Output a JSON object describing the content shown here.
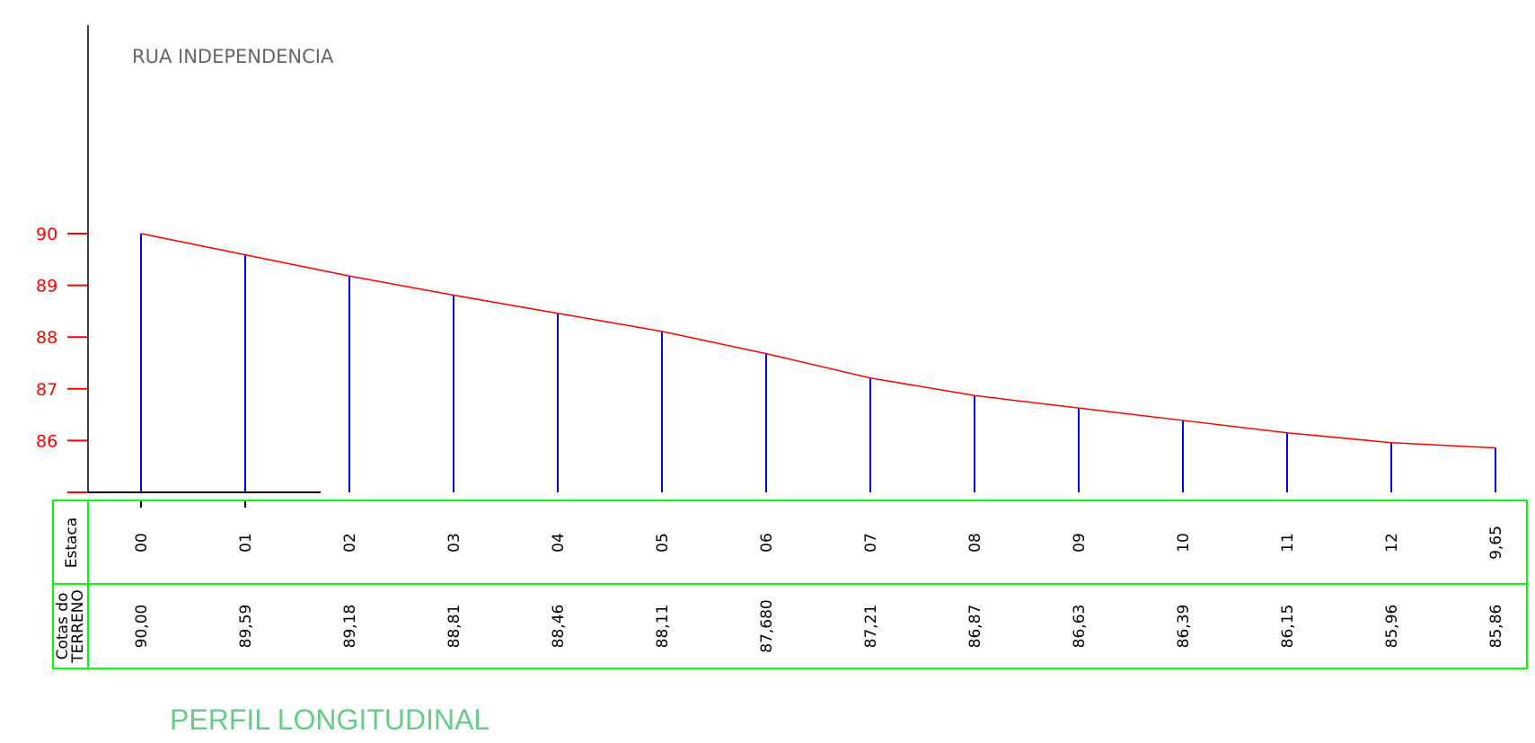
{
  "chart_data": {
    "type": "line",
    "title": "RUA INDEPENDENCIA",
    "subtitle": "PERFIL LONGITUDINAL",
    "x": [
      "00",
      "01",
      "02",
      "03",
      "04",
      "05",
      "06",
      "07",
      "08",
      "09",
      "10",
      "11",
      "12",
      "9,65"
    ],
    "series": [
      {
        "values": [
          90.0,
          89.59,
          89.18,
          88.81,
          88.46,
          88.11,
          87.68,
          87.21,
          86.87,
          86.63,
          86.39,
          86.15,
          85.96,
          85.86
        ]
      }
    ],
    "ylim": [
      85,
      90
    ],
    "y_ticks": [
      "86",
      "87",
      "88",
      "89",
      "90"
    ],
    "table": {
      "row_labels": {
        "estaca": "Estaca",
        "cotas_line1": "Cotas do",
        "cotas_line2": "TERRENO"
      },
      "estaca": [
        "00",
        "01",
        "02",
        "03",
        "04",
        "05",
        "06",
        "07",
        "08",
        "09",
        "10",
        "11",
        "12",
        "9,65"
      ],
      "cotas": [
        "90,00",
        "89,59",
        "89,18",
        "88,81",
        "88,46",
        "88,11",
        "87,680",
        "87,21",
        "86,87",
        "86,63",
        "86,39",
        "86,15",
        "85,96",
        "85,86"
      ]
    },
    "colors": {
      "profile_line": "#ff0000",
      "station_lines": "#0000ff",
      "table_border": "#00ff00",
      "axis_ticks": "#ff0000",
      "footer_title": "#66cc88"
    }
  }
}
